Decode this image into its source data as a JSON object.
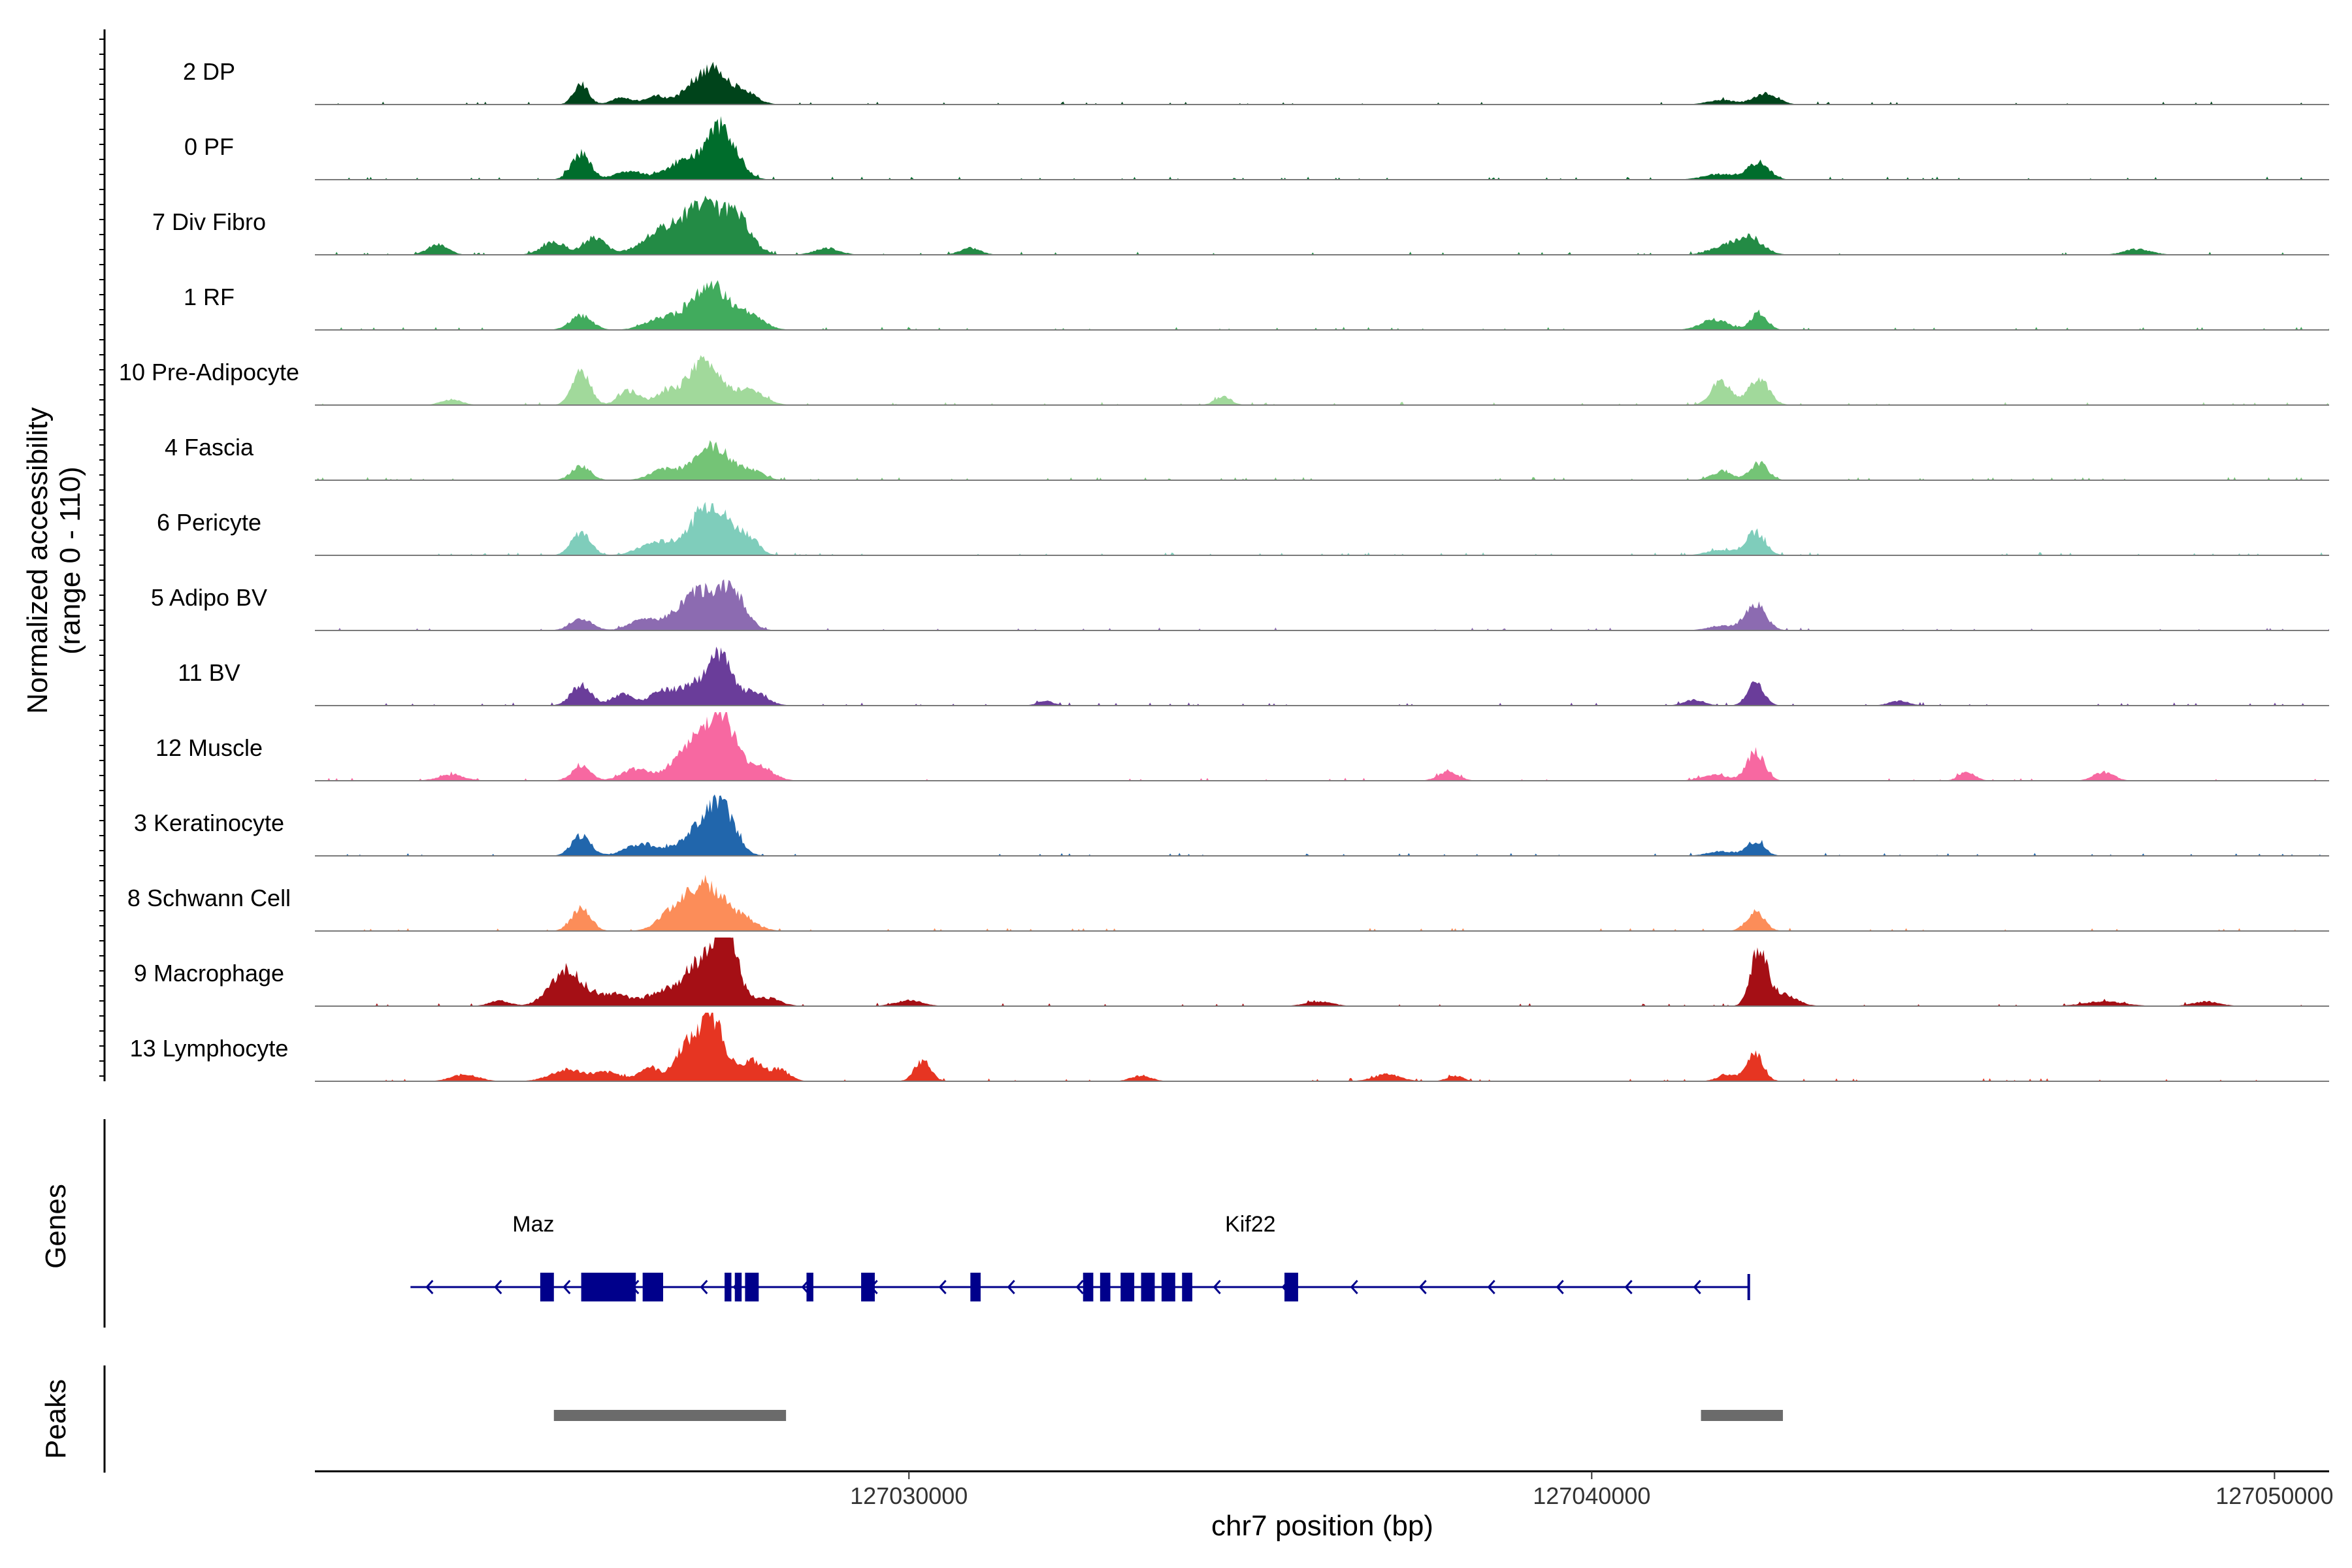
{
  "chart_data": {
    "type": "area",
    "title": "",
    "xlabel": "chr7 position (bp)",
    "ylabel": "Normalized accessibility",
    "ylabel_range": "(range 0 - 110)",
    "ylim": [
      0,
      110
    ],
    "xlim": [
      127021300,
      127050800
    ],
    "x_ticks": [
      127030000,
      127040000,
      127050000
    ],
    "x_tick_labels": [
      "127030000",
      "127040000",
      "127050000"
    ],
    "genes_label": "Genes",
    "peaks_label": "Peaks",
    "tracks": [
      {
        "name": "2 DP",
        "color": "#00441b",
        "peaks": [
          [
            127025200,
            35,
            110
          ],
          [
            127025800,
            12,
            150
          ],
          [
            127026300,
            15,
            160
          ],
          [
            127026800,
            25,
            160
          ],
          [
            127027150,
            60,
            200
          ],
          [
            127027600,
            20,
            180
          ],
          [
            127042550,
            20,
            170
          ],
          [
            127041900,
            8,
            200
          ]
        ]
      },
      {
        "name": "0 PF",
        "color": "#006d2c",
        "peaks": [
          [
            127025200,
            45,
            140
          ],
          [
            127025900,
            15,
            200
          ],
          [
            127026700,
            30,
            250
          ],
          [
            127027250,
            90,
            220
          ],
          [
            127042450,
            30,
            150
          ],
          [
            127041900,
            10,
            250
          ]
        ]
      },
      {
        "name": "7 Div Fibro",
        "color": "#238b45",
        "peaks": [
          [
            127023100,
            18,
            150
          ],
          [
            127024800,
            22,
            180
          ],
          [
            127025400,
            30,
            160
          ],
          [
            127026400,
            40,
            300
          ],
          [
            127027000,
            80,
            280
          ],
          [
            127027500,
            55,
            200
          ],
          [
            127028800,
            12,
            180
          ],
          [
            127030900,
            12,
            150
          ],
          [
            127042300,
            30,
            200
          ],
          [
            127041900,
            12,
            200
          ],
          [
            127048000,
            10,
            200
          ]
        ]
      },
      {
        "name": "1 RF",
        "color": "#41ab5d",
        "peaks": [
          [
            127025200,
            25,
            160
          ],
          [
            127026400,
            20,
            250
          ],
          [
            127027100,
            75,
            280
          ],
          [
            127027700,
            20,
            200
          ],
          [
            127041800,
            18,
            200
          ],
          [
            127042450,
            30,
            120
          ]
        ]
      },
      {
        "name": "10 Pre-Adipocyte",
        "color": "#a1d99b",
        "peaks": [
          [
            127025200,
            60,
            130
          ],
          [
            127025900,
            25,
            150
          ],
          [
            127026400,
            18,
            150
          ],
          [
            127027000,
            75,
            260
          ],
          [
            127027700,
            25,
            200
          ],
          [
            127023300,
            10,
            150
          ],
          [
            127034600,
            15,
            120
          ],
          [
            127041900,
            40,
            150
          ],
          [
            127042450,
            45,
            150
          ]
        ]
      },
      {
        "name": "4 Fascia",
        "color": "#74c476",
        "peaks": [
          [
            127025200,
            25,
            140
          ],
          [
            127026400,
            18,
            200
          ],
          [
            127027100,
            60,
            260
          ],
          [
            127027700,
            15,
            180
          ],
          [
            127041900,
            15,
            150
          ],
          [
            127042450,
            30,
            130
          ]
        ]
      },
      {
        "name": "6 Pericyte",
        "color": "#7fcdbb",
        "peaks": [
          [
            127025200,
            40,
            140
          ],
          [
            127026300,
            22,
            250
          ],
          [
            127027100,
            90,
            280
          ],
          [
            127027650,
            25,
            150
          ],
          [
            127042400,
            40,
            140
          ],
          [
            127041900,
            10,
            200
          ]
        ]
      },
      {
        "name": "5 Adipo BV",
        "color": "#8c6bb1",
        "peaks": [
          [
            127025200,
            20,
            160
          ],
          [
            127026100,
            18,
            200
          ],
          [
            127026900,
            65,
            300
          ],
          [
            127027400,
            60,
            200
          ],
          [
            127042400,
            45,
            150
          ],
          [
            127041900,
            8,
            200
          ]
        ]
      },
      {
        "name": "11 BV",
        "color": "#6a3d9a",
        "peaks": [
          [
            127025200,
            35,
            150
          ],
          [
            127025800,
            20,
            150
          ],
          [
            127026400,
            25,
            200
          ],
          [
            127026900,
            40,
            200
          ],
          [
            127027250,
            80,
            150
          ],
          [
            127027700,
            25,
            200
          ],
          [
            127032000,
            8,
            120
          ],
          [
            127041500,
            10,
            150
          ],
          [
            127042400,
            40,
            120
          ],
          [
            127044500,
            8,
            150
          ]
        ]
      },
      {
        "name": "12 Muscle",
        "color": "#f768a1",
        "peaks": [
          [
            127025200,
            25,
            140
          ],
          [
            127026000,
            20,
            200
          ],
          [
            127026800,
            60,
            250
          ],
          [
            127027250,
            110,
            200
          ],
          [
            127027800,
            25,
            200
          ],
          [
            127037900,
            15,
            150
          ],
          [
            127042400,
            50,
            130
          ],
          [
            127041800,
            10,
            200
          ],
          [
            127045500,
            15,
            120
          ],
          [
            127047500,
            15,
            150
          ],
          [
            127023300,
            10,
            200
          ]
        ]
      },
      {
        "name": "3 Keratinocyte",
        "color": "#2166ac",
        "peaks": [
          [
            127025200,
            35,
            140
          ],
          [
            127026100,
            20,
            250
          ],
          [
            127026900,
            40,
            250
          ],
          [
            127027250,
            80,
            200
          ],
          [
            127042400,
            25,
            130
          ],
          [
            127041900,
            8,
            200
          ]
        ]
      },
      {
        "name": "8 Schwann Cell",
        "color": "#fc8d59",
        "peaks": [
          [
            127025200,
            40,
            140
          ],
          [
            127026500,
            20,
            200
          ],
          [
            127027000,
            80,
            300
          ],
          [
            127027600,
            15,
            200
          ],
          [
            127042400,
            35,
            130
          ]
        ]
      },
      {
        "name": "9 Macrophage",
        "color": "#a50f15",
        "peaks": [
          [
            127025000,
            60,
            250
          ],
          [
            127025700,
            20,
            200
          ],
          [
            127026400,
            25,
            250
          ],
          [
            127027000,
            80,
            250
          ],
          [
            127027350,
            110,
            150
          ],
          [
            127027900,
            15,
            200
          ],
          [
            127030000,
            10,
            200
          ],
          [
            127036000,
            8,
            200
          ],
          [
            127042450,
            95,
            120
          ],
          [
            127042800,
            20,
            200
          ],
          [
            127047500,
            8,
            300
          ],
          [
            127049000,
            8,
            200
          ],
          [
            127024000,
            10,
            150
          ]
        ]
      },
      {
        "name": "13 Lymphocyte",
        "color": "#e63522",
        "peaks": [
          [
            127025000,
            20,
            250
          ],
          [
            127025600,
            15,
            200
          ],
          [
            127026200,
            25,
            150
          ],
          [
            127026700,
            50,
            150
          ],
          [
            127027100,
            110,
            200
          ],
          [
            127027700,
            35,
            150
          ],
          [
            127028100,
            20,
            150
          ],
          [
            127030200,
            35,
            120
          ],
          [
            127023500,
            12,
            200
          ],
          [
            127033400,
            10,
            150
          ],
          [
            127037000,
            12,
            200
          ],
          [
            127038000,
            10,
            120
          ],
          [
            127042400,
            45,
            120
          ],
          [
            127042000,
            12,
            150
          ]
        ]
      }
    ],
    "genes": [
      {
        "name": "Maz",
        "strand": "-",
        "start": 127022700,
        "end": 127027400,
        "label_at": 127024500,
        "exons": [
          [
            127024600,
            127024800
          ],
          [
            127025200,
            127026000
          ],
          [
            127026100,
            127026400
          ]
        ]
      },
      {
        "name": "Kif22",
        "strand": "-",
        "start": 127027200,
        "end": 127042300,
        "label_at": 127035000,
        "exons": [
          [
            127027300,
            127027400
          ],
          [
            127027450,
            127027550
          ],
          [
            127027600,
            127027800
          ],
          [
            127028500,
            127028600
          ],
          [
            127029300,
            127029500
          ],
          [
            127030900,
            127031050
          ],
          [
            127032550,
            127032700
          ],
          [
            127032800,
            127032950
          ],
          [
            127033100,
            127033300
          ],
          [
            127033400,
            127033600
          ],
          [
            127033700,
            127033900
          ],
          [
            127034000,
            127034150
          ],
          [
            127035500,
            127035700
          ]
        ]
      }
    ],
    "peak_regions": [
      [
        127024800,
        127028200
      ],
      [
        127041600,
        127042800
      ]
    ]
  }
}
